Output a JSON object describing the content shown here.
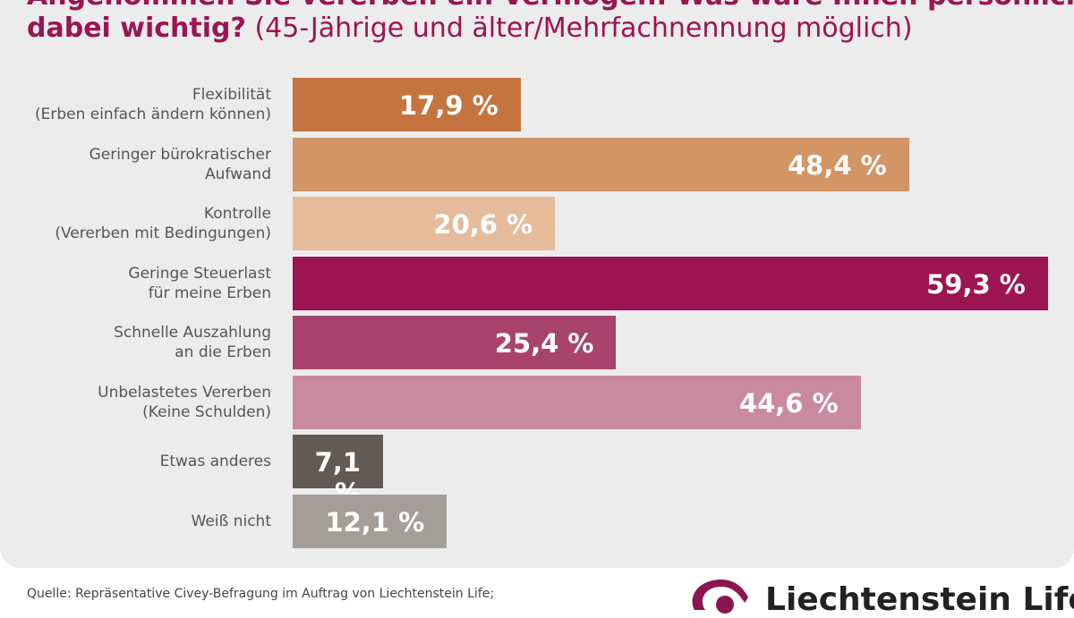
{
  "chart_data": {
    "type": "bar",
    "orientation": "horizontal",
    "title_bold": "Angenommen Sie vererben ein Vermögen: Was wäre Ihnen persönlich dabei wichtig?",
    "title_line1": "Angenommen Sie vererben ein Vermögen: Was wäre Ihnen persönlich",
    "title_line2_bold": "dabei wichtig?",
    "subtitle": "(45-Jährige und älter/Mehrfachnennung möglich)",
    "categories": [
      [
        "Flexibilität",
        "(Erben einfach ändern können)"
      ],
      [
        "Geringer bürokratischer",
        "Aufwand"
      ],
      [
        "Kontrolle",
        "(Vererben mit Bedingungen)"
      ],
      [
        "Geringe Steuerlast",
        "für meine Erben"
      ],
      [
        "Schnelle Auszahlung",
        "an die Erben"
      ],
      [
        "Unbelastetes Vererben",
        "(Keine Schulden)"
      ],
      [
        "Etwas anderes"
      ],
      [
        "Weiß nicht"
      ]
    ],
    "values": [
      17.9,
      48.4,
      20.6,
      59.3,
      25.4,
      44.6,
      7.1,
      12.1
    ],
    "value_labels": [
      "17,9 %",
      "48,4 %",
      "20,6 %",
      "59,3 %",
      "25,4 %",
      "44,6 %",
      "7,1 %",
      "12,1 %"
    ],
    "colors": [
      "#c4743f",
      "#d39466",
      "#e5bb9c",
      "#9c1452",
      "#a8446b",
      "#c98aa0",
      "#625b53",
      "#a49e98"
    ],
    "xlim": [
      0,
      100
    ],
    "grid": false
  },
  "footer": {
    "source": "Quelle: Repräsentative Civey-Befragung im Auftrag von Liechtenstein Life;",
    "logo_text": "Liechtenstein Life"
  }
}
